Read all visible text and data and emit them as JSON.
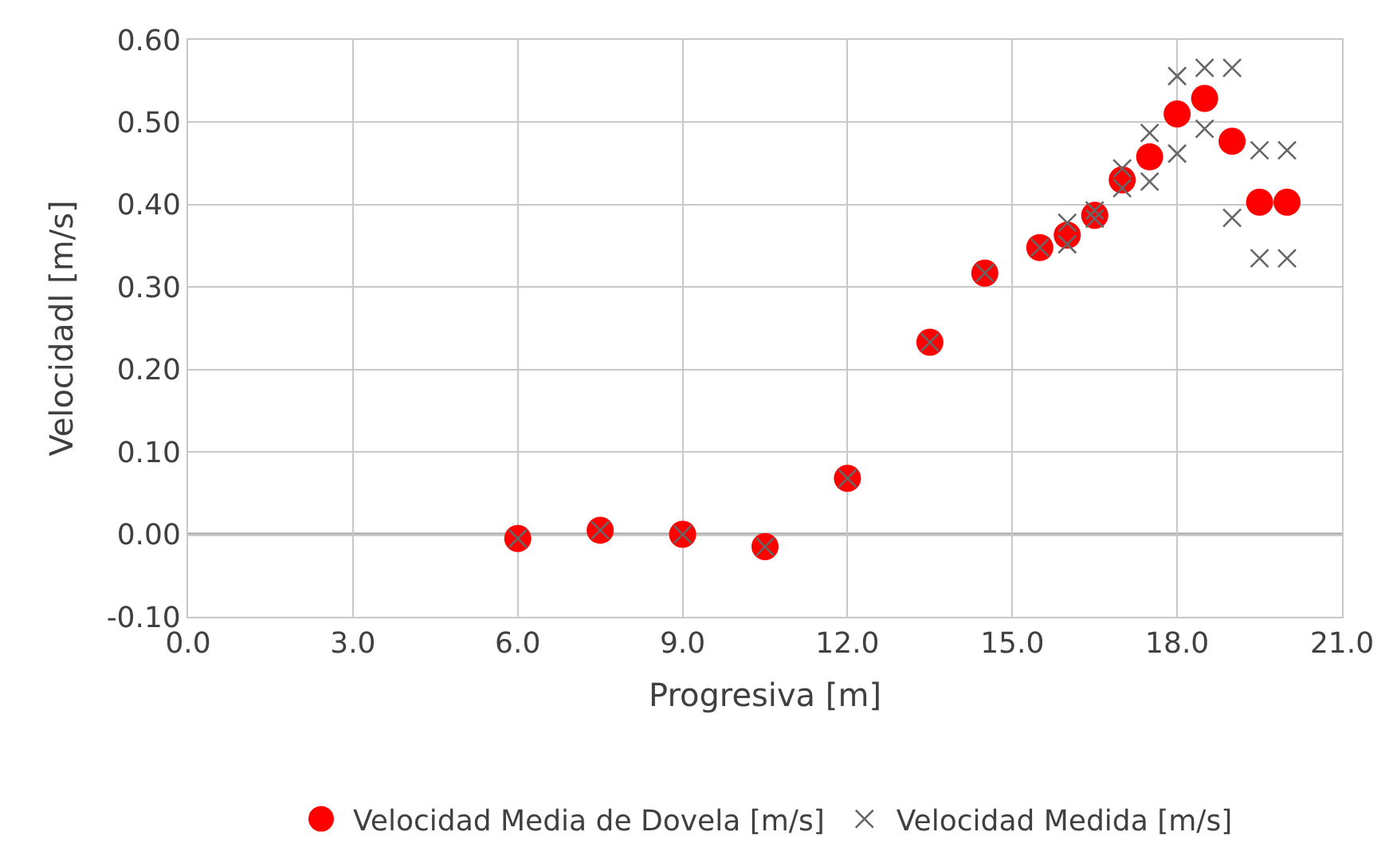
{
  "chart_data": {
    "type": "scatter",
    "xlabel": "Progresiva [m]",
    "ylabel": "Velocidadl [m/s]",
    "xlim": [
      0,
      21
    ],
    "xticks": [
      {
        "value": 0,
        "label": "0.0"
      },
      {
        "value": 3,
        "label": "3.0"
      },
      {
        "value": 6,
        "label": "6.0"
      },
      {
        "value": 9,
        "label": "9.0"
      },
      {
        "value": 12,
        "label": "12.0"
      },
      {
        "value": 15,
        "label": "15.0"
      },
      {
        "value": 18,
        "label": "18.0"
      },
      {
        "value": 21,
        "label": "21.0"
      }
    ],
    "ylim": [
      -0.1,
      0.6
    ],
    "yticks": [
      {
        "value": -0.1,
        "label": "-0.10"
      },
      {
        "value": 0,
        "label": "0.00"
      },
      {
        "value": 0.1,
        "label": "0.10"
      },
      {
        "value": 0.2,
        "label": "0.20"
      },
      {
        "value": 0.3,
        "label": "0.30"
      },
      {
        "value": 0.4,
        "label": "0.40"
      },
      {
        "value": 0.5,
        "label": "0.50"
      },
      {
        "value": 0.6,
        "label": "0.60"
      }
    ],
    "grid": true,
    "legend": "bottom",
    "series": [
      {
        "name": "Velocidad Media de Dovela [m/s]",
        "color": "#ff0000",
        "marker": "circle",
        "x": [
          6,
          7.5,
          9,
          10.5,
          12,
          13.5,
          14.5,
          15.5,
          16,
          16.5,
          17,
          17.5,
          18,
          18.5,
          19,
          19.5,
          20
        ],
        "values": [
          -0.005,
          0.005,
          0.0,
          -0.015,
          0.068,
          0.233,
          0.317,
          0.348,
          0.363,
          0.387,
          0.43,
          0.458,
          0.51,
          0.529,
          0.477,
          0.403,
          0.403
        ]
      },
      {
        "name": "Velocidad Medida [m/s]",
        "color": "#666666",
        "marker": "cross",
        "x": [
          6,
          7.5,
          9,
          10.5,
          12,
          13.5,
          14.5,
          15.5,
          16,
          16,
          16.5,
          16.5,
          17,
          17,
          17.5,
          17.5,
          18,
          18,
          18.5,
          18.5,
          19,
          19,
          19.5,
          19.5,
          20,
          20
        ],
        "values": [
          -0.005,
          0.005,
          0.0,
          -0.015,
          0.068,
          0.233,
          0.317,
          0.348,
          0.352,
          0.378,
          0.383,
          0.393,
          0.42,
          0.444,
          0.428,
          0.487,
          0.462,
          0.556,
          0.492,
          0.566,
          0.384,
          0.566,
          0.335,
          0.466,
          0.335,
          0.466
        ]
      }
    ]
  }
}
